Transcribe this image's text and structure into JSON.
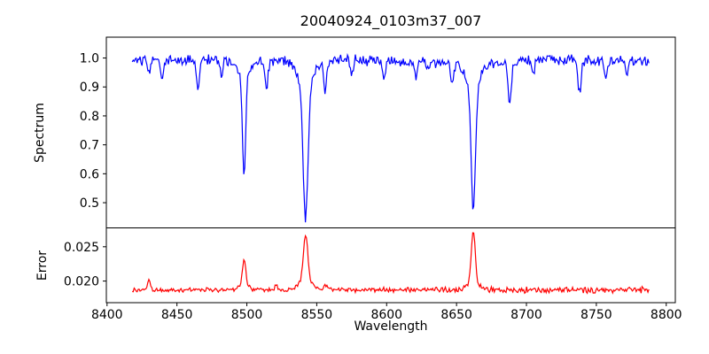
{
  "chart_data": {
    "type": "line",
    "title": "20040924_0103m37_007",
    "xlabel": "Wavelength",
    "xlim": [
      8399.5,
      8806.5
    ],
    "xticks": [
      8400,
      8450,
      8500,
      8550,
      8600,
      8650,
      8700,
      8750,
      8800
    ],
    "xtick_labels": [
      "8400",
      "8450",
      "8500",
      "8550",
      "8600",
      "8650",
      "8700",
      "8750",
      "8800"
    ],
    "x_start": 8418,
    "x_end": 8788,
    "x_step": 0.7,
    "seed": 20040924,
    "grid": false,
    "legend": null,
    "panels": [
      {
        "name": "spectrum",
        "ylabel": "Spectrum",
        "line_color": "#0000ff",
        "ylim": [
          0.413,
          1.072
        ],
        "yticks": [
          0.5,
          0.6,
          0.7,
          0.8,
          0.9,
          1.0
        ],
        "ytick_labels": [
          "0.5",
          "0.6",
          "0.7",
          "0.8",
          "0.9",
          "1.0"
        ],
        "continuum": 0.99,
        "noise_amplitude": 0.022,
        "min_clip": 0.418,
        "absorption_lines": [
          {
            "center": 8430.0,
            "depth": 0.05,
            "sigma": 0.9
          },
          {
            "center": 8439.0,
            "depth": 0.065,
            "sigma": 1.0
          },
          {
            "center": 8465.0,
            "depth": 0.095,
            "sigma": 1.1
          },
          {
            "center": 8482.0,
            "depth": 0.055,
            "sigma": 0.9
          },
          {
            "center": 8498.0,
            "depth": 0.33,
            "sigma": 1.1,
            "wing_depth": 0.065,
            "wing_sigma": 4.0
          },
          {
            "center": 8514.0,
            "depth": 0.095,
            "sigma": 1.1
          },
          {
            "center": 8542.0,
            "depth": 0.455,
            "sigma": 1.7,
            "wing_depth": 0.095,
            "wing_sigma": 5.5
          },
          {
            "center": 8556.0,
            "depth": 0.11,
            "sigma": 1.0
          },
          {
            "center": 8575.0,
            "depth": 0.06,
            "sigma": 0.9
          },
          {
            "center": 8598.0,
            "depth": 0.06,
            "sigma": 0.9
          },
          {
            "center": 8621.0,
            "depth": 0.05,
            "sigma": 0.9
          },
          {
            "center": 8647.0,
            "depth": 0.08,
            "sigma": 1.0
          },
          {
            "center": 8662.0,
            "depth": 0.425,
            "sigma": 1.5,
            "wing_depth": 0.09,
            "wing_sigma": 5.0
          },
          {
            "center": 8688.0,
            "depth": 0.145,
            "sigma": 1.2
          },
          {
            "center": 8705.0,
            "depth": 0.06,
            "sigma": 0.9
          },
          {
            "center": 8738.0,
            "depth": 0.115,
            "sigma": 1.1
          },
          {
            "center": 8757.0,
            "depth": 0.06,
            "sigma": 0.9
          },
          {
            "center": 8772.0,
            "depth": 0.065,
            "sigma": 0.9
          }
        ]
      },
      {
        "name": "error",
        "ylabel": "Error",
        "line_color": "#ff0000",
        "ylim": [
          0.01685,
          0.02775
        ],
        "yticks": [
          0.02,
          0.025
        ],
        "ytick_labels": [
          "0.020",
          "0.025"
        ],
        "baseline": 0.0187,
        "noise_amplitude": 0.00035,
        "peaks": [
          {
            "center": 8430.0,
            "height": 0.0016,
            "sigma": 1.0
          },
          {
            "center": 8498.0,
            "height": 0.004,
            "sigma": 1.2,
            "wing_height": 0.0006,
            "wing_sigma": 3.5
          },
          {
            "center": 8521.0,
            "height": 0.0007,
            "sigma": 1.0
          },
          {
            "center": 8542.0,
            "height": 0.0068,
            "sigma": 1.6,
            "wing_height": 0.0012,
            "wing_sigma": 4.5
          },
          {
            "center": 8556.0,
            "height": 0.0008,
            "sigma": 1.0
          },
          {
            "center": 8662.0,
            "height": 0.0076,
            "sigma": 1.4,
            "wing_height": 0.0011,
            "wing_sigma": 4.0
          }
        ]
      }
    ],
    "colors": {
      "spectrum_line": "#0000ff",
      "error_line": "#ff0000",
      "axes": "#000000",
      "background": "#ffffff"
    }
  }
}
